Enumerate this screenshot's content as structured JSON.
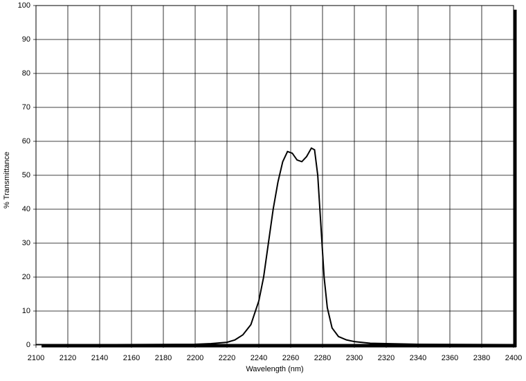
{
  "chart_data": {
    "type": "line",
    "x_label": "Wavelength (nm)",
    "y_label": "% Transmittance",
    "x": [
      2100,
      2150,
      2200,
      2210,
      2220,
      2225,
      2230,
      2235,
      2240,
      2243,
      2246,
      2249,
      2252,
      2255,
      2258,
      2261,
      2264,
      2267,
      2270,
      2273,
      2275,
      2277,
      2279,
      2281,
      2283,
      2286,
      2290,
      2295,
      2300,
      2310,
      2340,
      2400
    ],
    "series": [
      {
        "color": "#000000",
        "values": [
          0.1,
          0.1,
          0.2,
          0.4,
          0.8,
          1.5,
          3,
          6,
          13,
          20,
          30,
          40,
          48,
          54,
          57,
          56.5,
          54.5,
          54,
          55.5,
          58,
          57.5,
          50,
          35,
          20,
          11,
          5,
          2.5,
          1.5,
          1,
          0.5,
          0.2,
          0.1
        ]
      }
    ],
    "xlim": [
      2100,
      2400
    ],
    "ylim": [
      0,
      100
    ],
    "xticks": [
      2100,
      2120,
      2140,
      2160,
      2180,
      2200,
      2220,
      2240,
      2260,
      2280,
      2300,
      2320,
      2340,
      2360,
      2380,
      2400
    ],
    "yticks": [
      0,
      10,
      20,
      30,
      40,
      50,
      60,
      70,
      80,
      90,
      100
    ],
    "grid": true
  }
}
